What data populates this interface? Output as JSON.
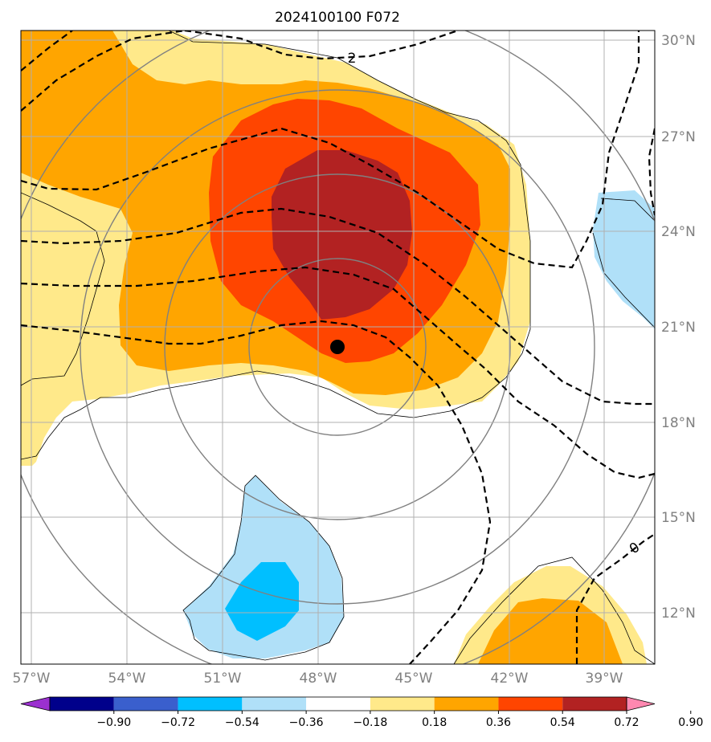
{
  "title": "2024100100 F072",
  "map": {
    "lon_range": [
      -57.3,
      -37.6
    ],
    "lat_range": [
      10.3,
      30.3
    ],
    "lat_ticks": [
      "30°N",
      "27°N",
      "24°N",
      "21°N",
      "18°N",
      "15°N",
      "12°N"
    ],
    "lon_ticks": [
      "57°W",
      "54°W",
      "51°W",
      "48°W",
      "45°W",
      "42°W",
      "39°W"
    ],
    "grid": true,
    "storm_center": {
      "lon": -47.3,
      "lat": 20.4,
      "marker": "black-dot"
    },
    "contour_labels": [
      "2",
      "0"
    ],
    "range_rings_color": "#808080",
    "contour_style": "black-dashed"
  },
  "colorbar": {
    "tick_labels": [
      "−0.90",
      "−0.72",
      "−0.54",
      "−0.36",
      "−0.18",
      "0.18",
      "0.36",
      "0.54",
      "0.72",
      "0.90"
    ],
    "colors": [
      "#9b30d0",
      "#00008b",
      "#3a5fcd",
      "#00bfff",
      "#b0e0f8",
      "#ffffff",
      "#ffe98a",
      "#ffa500",
      "#ff4500",
      "#b22222",
      "#ff88b0"
    ],
    "extend": "both"
  },
  "shading_colors": {
    "light_yellow": "#ffe98a",
    "orange": "#ffa500",
    "red_orange": "#ff4500",
    "dark_red": "#b22222",
    "light_blue": "#b0e0f8",
    "sky_blue": "#00bfff"
  }
}
